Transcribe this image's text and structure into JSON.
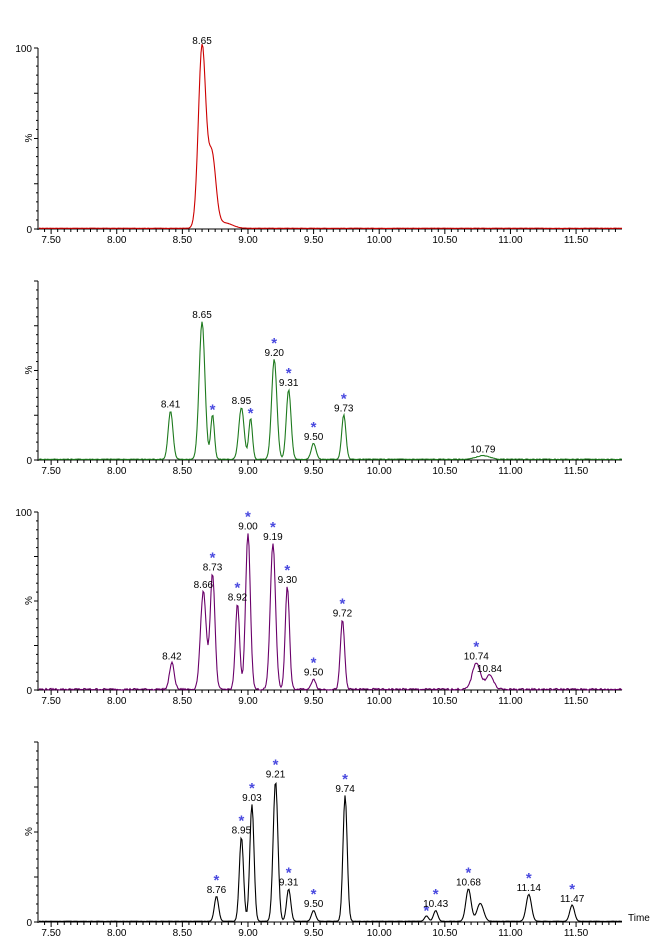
{
  "colors": {
    "star": "#4a4adf",
    "axis": "#000000"
  },
  "chart_data": [
    {
      "type": "line",
      "ylabel": "%",
      "y_ticks": [
        "100",
        "0"
      ],
      "x_tick_labels": [
        "7.50",
        "8.00",
        "8.50",
        "9.00",
        "9.50",
        "10.00",
        "10.50",
        "11.00",
        "11.50"
      ],
      "x_ticks": [
        7.5,
        8.0,
        8.5,
        9.0,
        9.5,
        10.0,
        10.5,
        11.0,
        11.5
      ],
      "xlim": [
        7.4,
        11.85
      ],
      "ylim": [
        0,
        100
      ],
      "color": "#cc0000",
      "series": [
        {
          "peaks": [
            {
              "x": 8.65,
              "y": 100,
              "w": 0.028
            },
            {
              "x": 8.725,
              "y": 40,
              "w": 0.03
            },
            {
              "x": 8.82,
              "y": 3,
              "w": 0.06
            }
          ]
        }
      ],
      "labels": [
        {
          "text": "8.65",
          "x": 8.65,
          "y": 100,
          "star": false
        }
      ]
    },
    {
      "type": "line",
      "ylabel": "%",
      "y_ticks": [
        "0"
      ],
      "x_tick_labels": [
        "7.50",
        "8.00",
        "8.50",
        "9.00",
        "9.50",
        "10.00",
        "10.50",
        "11.00",
        "11.50"
      ],
      "x_ticks": [
        7.5,
        8.0,
        8.5,
        9.0,
        9.5,
        10.0,
        10.5,
        11.0,
        11.5
      ],
      "xlim": [
        7.4,
        11.85
      ],
      "ylim": [
        0,
        100
      ],
      "color": "#1e7a1e",
      "series": [
        {
          "peaks": [
            {
              "x": 8.41,
              "y": 27,
              "w": 0.018
            },
            {
              "x": 8.65,
              "y": 77,
              "w": 0.022
            },
            {
              "x": 8.73,
              "y": 25,
              "w": 0.014
            },
            {
              "x": 8.95,
              "y": 29,
              "w": 0.02
            },
            {
              "x": 9.02,
              "y": 23,
              "w": 0.014
            },
            {
              "x": 9.2,
              "y": 56,
              "w": 0.02
            },
            {
              "x": 9.31,
              "y": 39,
              "w": 0.018
            },
            {
              "x": 9.5,
              "y": 9,
              "w": 0.018
            },
            {
              "x": 9.73,
              "y": 25,
              "w": 0.016
            },
            {
              "x": 10.79,
              "y": 2,
              "w": 0.05
            }
          ]
        }
      ],
      "labels": [
        {
          "text": "8.41",
          "x": 8.41,
          "y": 27,
          "star": false
        },
        {
          "text": "8.65",
          "x": 8.65,
          "y": 77,
          "star": false
        },
        {
          "text": "",
          "x": 8.73,
          "y": 25,
          "star": true
        },
        {
          "text": "8.95",
          "x": 8.95,
          "y": 29,
          "star": false
        },
        {
          "text": "",
          "x": 9.02,
          "y": 23,
          "star": true
        },
        {
          "text": "9.20",
          "x": 9.2,
          "y": 56,
          "star": true
        },
        {
          "text": "9.31",
          "x": 9.31,
          "y": 39,
          "star": true
        },
        {
          "text": "9.50",
          "x": 9.5,
          "y": 9,
          "star": true
        },
        {
          "text": "9.73",
          "x": 9.73,
          "y": 25,
          "star": true
        },
        {
          "text": "10.79",
          "x": 10.79,
          "y": 2,
          "star": false
        }
      ]
    },
    {
      "type": "line",
      "ylabel": "%",
      "y_ticks": [
        "100",
        "0"
      ],
      "x_tick_labels": [
        "7.50",
        "8.00",
        "8.50",
        "9.00",
        "9.50",
        "10.00",
        "10.50",
        "11.00",
        "11.50"
      ],
      "x_ticks": [
        7.5,
        8.0,
        8.5,
        9.0,
        9.5,
        10.0,
        10.5,
        11.0,
        11.5
      ],
      "xlim": [
        7.4,
        11.85
      ],
      "ylim": [
        0,
        100
      ],
      "color": "#6a006a",
      "series": [
        {
          "peaks": [
            {
              "x": 8.42,
              "y": 15,
              "w": 0.018
            },
            {
              "x": 8.66,
              "y": 55,
              "w": 0.022
            },
            {
              "x": 8.73,
              "y": 65,
              "w": 0.018
            },
            {
              "x": 8.92,
              "y": 48,
              "w": 0.016
            },
            {
              "x": 9.0,
              "y": 88,
              "w": 0.018
            },
            {
              "x": 9.19,
              "y": 82,
              "w": 0.02
            },
            {
              "x": 9.3,
              "y": 58,
              "w": 0.016
            },
            {
              "x": 9.5,
              "y": 6,
              "w": 0.016
            },
            {
              "x": 9.72,
              "y": 39,
              "w": 0.016
            },
            {
              "x": 10.74,
              "y": 15,
              "w": 0.03
            },
            {
              "x": 10.84,
              "y": 8,
              "w": 0.03
            }
          ]
        }
      ],
      "labels": [
        {
          "text": "8.42",
          "x": 8.42,
          "y": 15,
          "star": false
        },
        {
          "text": "8.66",
          "x": 8.66,
          "y": 55,
          "star": false
        },
        {
          "text": "8.73",
          "x": 8.73,
          "y": 65,
          "star": true
        },
        {
          "text": "8.92",
          "x": 8.92,
          "y": 48,
          "star": true
        },
        {
          "text": "9.00",
          "x": 9.0,
          "y": 88,
          "star": true
        },
        {
          "text": "9.19",
          "x": 9.19,
          "y": 82,
          "star": true
        },
        {
          "text": "9.30",
          "x": 9.3,
          "y": 58,
          "star": true
        },
        {
          "text": "9.50",
          "x": 9.5,
          "y": 6,
          "star": true
        },
        {
          "text": "9.72",
          "x": 9.72,
          "y": 39,
          "star": true
        },
        {
          "text": "10.74",
          "x": 10.74,
          "y": 15,
          "star": true
        },
        {
          "text": "10.84",
          "x": 10.84,
          "y": 8,
          "star": false
        }
      ]
    },
    {
      "type": "line",
      "ylabel": "%",
      "y_ticks": [
        "0"
      ],
      "xlabel": "Time",
      "x_tick_labels": [
        "7.50",
        "8.00",
        "8.50",
        "9.00",
        "9.50",
        "10.00",
        "10.50",
        "11.00",
        "11.50"
      ],
      "x_ticks": [
        7.5,
        8.0,
        8.5,
        9.0,
        9.5,
        10.0,
        10.5,
        11.0,
        11.5
      ],
      "xlim": [
        7.4,
        11.85
      ],
      "ylim": [
        0,
        100
      ],
      "color": "#000000",
      "series": [
        {
          "peaks": [
            {
              "x": 8.76,
              "y": 14,
              "w": 0.016
            },
            {
              "x": 8.95,
              "y": 47,
              "w": 0.016
            },
            {
              "x": 9.03,
              "y": 65,
              "w": 0.016
            },
            {
              "x": 9.21,
              "y": 78,
              "w": 0.018
            },
            {
              "x": 9.31,
              "y": 18,
              "w": 0.016
            },
            {
              "x": 9.5,
              "y": 6,
              "w": 0.016
            },
            {
              "x": 9.74,
              "y": 70,
              "w": 0.016
            },
            {
              "x": 10.36,
              "y": 3,
              "w": 0.015
            },
            {
              "x": 10.43,
              "y": 6,
              "w": 0.016
            },
            {
              "x": 10.68,
              "y": 18,
              "w": 0.02
            },
            {
              "x": 10.77,
              "y": 10,
              "w": 0.025
            },
            {
              "x": 11.14,
              "y": 15,
              "w": 0.02
            },
            {
              "x": 11.47,
              "y": 9,
              "w": 0.018
            }
          ]
        }
      ],
      "labels": [
        {
          "text": "8.76",
          "x": 8.76,
          "y": 14,
          "star": true
        },
        {
          "text": "8.95",
          "x": 8.95,
          "y": 47,
          "star": true
        },
        {
          "text": "9.03",
          "x": 9.03,
          "y": 65,
          "star": true
        },
        {
          "text": "9.21",
          "x": 9.21,
          "y": 78,
          "star": true
        },
        {
          "text": "9.31",
          "x": 9.31,
          "y": 18,
          "star": true
        },
        {
          "text": "9.50",
          "x": 9.5,
          "y": 6,
          "star": true
        },
        {
          "text": "9.74",
          "x": 9.74,
          "y": 70,
          "star": true
        },
        {
          "text": "",
          "x": 10.36,
          "y": 3,
          "star": true
        },
        {
          "text": "10.43",
          "x": 10.43,
          "y": 6,
          "star": true
        },
        {
          "text": "10.68",
          "x": 10.68,
          "y": 18,
          "star": true
        },
        {
          "text": "11.14",
          "x": 11.14,
          "y": 15,
          "star": true
        },
        {
          "text": "11.47",
          "x": 11.47,
          "y": 9,
          "star": true
        }
      ]
    }
  ]
}
